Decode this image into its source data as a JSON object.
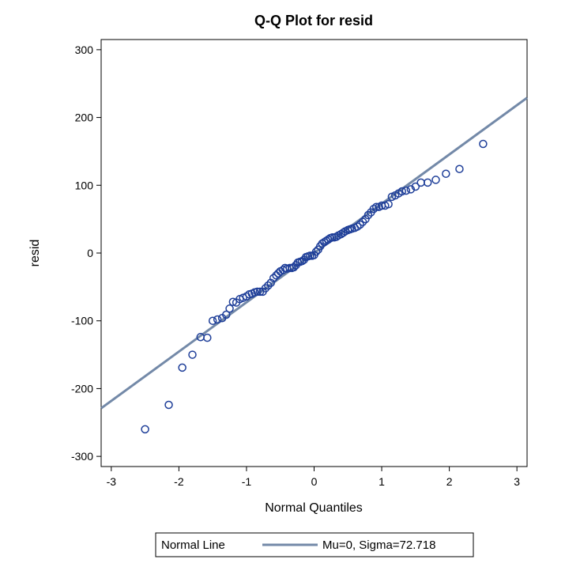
{
  "chart_data": {
    "type": "scatter",
    "title": "Q-Q Plot for resid",
    "xlabel": "Normal Quantiles",
    "ylabel": "resid",
    "xlim": [
      -3.15,
      3.15
    ],
    "ylim": [
      -315,
      315
    ],
    "x_ticks": [
      -3,
      -2,
      -1,
      0,
      1,
      2,
      3
    ],
    "y_ticks": [
      -300,
      -200,
      -100,
      0,
      100,
      200,
      300
    ],
    "x_tick_labels": [
      "-3",
      "-2",
      "-1",
      "0",
      "1",
      "2",
      "3"
    ],
    "y_tick_labels": [
      "-300",
      "-200",
      "-100",
      "0",
      "100",
      "200",
      "300"
    ],
    "grid": false,
    "legend": {
      "placement": "bottom-center",
      "title": "Normal Line",
      "entry": "Mu=0, Sigma=72.718"
    },
    "reference_line": {
      "mu": 0,
      "sigma": 72.718,
      "color": "#7389a8"
    },
    "marker_color": "#1f3f99",
    "points": [
      [
        -2.5,
        -260
      ],
      [
        -2.15,
        -224
      ],
      [
        -1.95,
        -169
      ],
      [
        -1.8,
        -150
      ],
      [
        -1.68,
        -124
      ],
      [
        -1.58,
        -125
      ],
      [
        -1.5,
        -100
      ],
      [
        -1.43,
        -98
      ],
      [
        -1.36,
        -96
      ],
      [
        -1.3,
        -91
      ],
      [
        -1.25,
        -82
      ],
      [
        -1.2,
        -72
      ],
      [
        -1.15,
        -73
      ],
      [
        -1.1,
        -68
      ],
      [
        -1.05,
        -66
      ],
      [
        -1.0,
        -64
      ],
      [
        -0.96,
        -61
      ],
      [
        -0.92,
        -60
      ],
      [
        -0.88,
        -58
      ],
      [
        -0.84,
        -57
      ],
      [
        -0.8,
        -57
      ],
      [
        -0.76,
        -57
      ],
      [
        -0.72,
        -52
      ],
      [
        -0.68,
        -48
      ],
      [
        -0.64,
        -44
      ],
      [
        -0.6,
        -37
      ],
      [
        -0.56,
        -33
      ],
      [
        -0.53,
        -30
      ],
      [
        -0.5,
        -27
      ],
      [
        -0.46,
        -25
      ],
      [
        -0.43,
        -22
      ],
      [
        -0.4,
        -23
      ],
      [
        -0.36,
        -22
      ],
      [
        -0.33,
        -22
      ],
      [
        -0.3,
        -21
      ],
      [
        -0.27,
        -18
      ],
      [
        -0.24,
        -14
      ],
      [
        -0.21,
        -13
      ],
      [
        -0.18,
        -12
      ],
      [
        -0.15,
        -10
      ],
      [
        -0.12,
        -6
      ],
      [
        -0.09,
        -5
      ],
      [
        -0.06,
        -4
      ],
      [
        -0.03,
        -4
      ],
      [
        0.0,
        -3
      ],
      [
        0.03,
        2
      ],
      [
        0.06,
        5
      ],
      [
        0.09,
        10
      ],
      [
        0.12,
        14
      ],
      [
        0.15,
        16
      ],
      [
        0.18,
        18
      ],
      [
        0.21,
        20
      ],
      [
        0.24,
        22
      ],
      [
        0.27,
        23
      ],
      [
        0.3,
        23
      ],
      [
        0.33,
        24
      ],
      [
        0.36,
        26
      ],
      [
        0.4,
        28
      ],
      [
        0.43,
        30
      ],
      [
        0.46,
        32
      ],
      [
        0.5,
        34
      ],
      [
        0.53,
        35
      ],
      [
        0.56,
        36
      ],
      [
        0.6,
        37
      ],
      [
        0.64,
        39
      ],
      [
        0.68,
        42
      ],
      [
        0.72,
        46
      ],
      [
        0.76,
        50
      ],
      [
        0.8,
        56
      ],
      [
        0.84,
        60
      ],
      [
        0.88,
        65
      ],
      [
        0.92,
        68
      ],
      [
        0.96,
        68
      ],
      [
        1.0,
        70
      ],
      [
        1.05,
        70
      ],
      [
        1.1,
        72
      ],
      [
        1.15,
        83
      ],
      [
        1.2,
        85
      ],
      [
        1.25,
        88
      ],
      [
        1.3,
        91
      ],
      [
        1.36,
        92
      ],
      [
        1.43,
        94
      ],
      [
        1.5,
        98
      ],
      [
        1.58,
        104
      ],
      [
        1.68,
        104
      ],
      [
        1.8,
        108
      ],
      [
        1.95,
        117
      ],
      [
        2.15,
        124
      ],
      [
        2.5,
        161
      ]
    ]
  }
}
